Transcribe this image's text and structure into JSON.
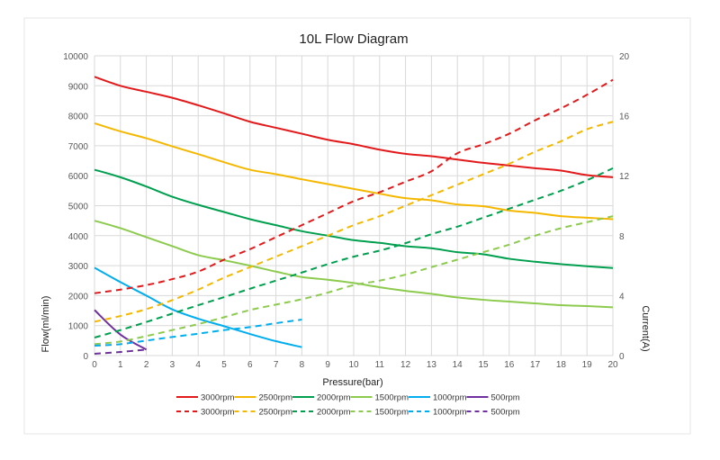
{
  "chart_data": {
    "type": "line",
    "title": "10L Flow Diagram",
    "xlabel": "Pressure(bar)",
    "ylabel": "Flow(ml/min)",
    "y2label": "Current(A)",
    "xlim": [
      0,
      20
    ],
    "ylim": [
      0,
      10000
    ],
    "y2lim": [
      0,
      20
    ],
    "xticks": [
      "0",
      "1",
      "2",
      "3",
      "4",
      "5",
      "6",
      "7",
      "8",
      "9",
      "10",
      "11",
      "12",
      "13",
      "14",
      "15",
      "16",
      "17",
      "18",
      "19",
      "20"
    ],
    "yticks": [
      "0",
      "1000",
      "2000",
      "3000",
      "4000",
      "5000",
      "6000",
      "7000",
      "8000",
      "9000",
      "10000"
    ],
    "y2ticks": [
      "0",
      "4",
      "8",
      "12",
      "16",
      "20"
    ],
    "grid": true,
    "legend_position": "bottom",
    "series": [
      {
        "name": "3000rpm",
        "axis": "flow",
        "style": "solid",
        "color": "#e31a1c",
        "values": [
          9300,
          9000,
          8800,
          8600,
          8350,
          8080,
          7800,
          7600,
          7400,
          7200,
          7050,
          6870,
          6730,
          6650,
          6540,
          6430,
          6340,
          6250,
          6170,
          6020,
          5950
        ]
      },
      {
        "name": "2500rpm",
        "axis": "flow",
        "style": "solid",
        "color": "#f5b800",
        "values": [
          7750,
          7480,
          7250,
          6980,
          6720,
          6450,
          6200,
          6050,
          5880,
          5720,
          5560,
          5400,
          5250,
          5180,
          5040,
          4980,
          4840,
          4760,
          4650,
          4600,
          4550
        ]
      },
      {
        "name": "2000rpm",
        "axis": "flow",
        "style": "solid",
        "color": "#00a04f",
        "values": [
          6200,
          5950,
          5640,
          5300,
          5030,
          4790,
          4550,
          4350,
          4150,
          4000,
          3850,
          3760,
          3650,
          3580,
          3450,
          3380,
          3230,
          3130,
          3050,
          2980,
          2920
        ]
      },
      {
        "name": "1500rpm",
        "axis": "flow",
        "style": "solid",
        "color": "#8dcb4f",
        "values": [
          4500,
          4250,
          3950,
          3650,
          3350,
          3180,
          3000,
          2800,
          2620,
          2530,
          2420,
          2280,
          2160,
          2060,
          1940,
          1860,
          1800,
          1740,
          1680,
          1650,
          1610
        ]
      },
      {
        "name": "1000rpm",
        "axis": "flow",
        "style": "solid",
        "color": "#00aeef",
        "values": [
          2930,
          2450,
          2000,
          1540,
          1230,
          980,
          720,
          480,
          280
        ]
      },
      {
        "name": "500rpm",
        "axis": "flow",
        "style": "solid",
        "color": "#7030a0",
        "values": [
          1520,
          700,
          200
        ]
      },
      {
        "name": "3000rpm",
        "axis": "current",
        "style": "dashed",
        "color": "#e31a1c",
        "values": [
          4.16,
          4.4,
          4.7,
          5.1,
          5.6,
          6.4,
          7.1,
          7.9,
          8.7,
          9.5,
          10.3,
          10.9,
          11.6,
          12.3,
          13.5,
          14.1,
          14.8,
          15.7,
          16.5,
          17.4,
          18.4
        ]
      },
      {
        "name": "2500rpm",
        "axis": "current",
        "style": "dashed",
        "color": "#f5b800",
        "values": [
          2.26,
          2.64,
          3.1,
          3.7,
          4.4,
          5.2,
          5.9,
          6.6,
          7.3,
          8.0,
          8.7,
          9.3,
          10.0,
          10.7,
          11.4,
          12.1,
          12.8,
          13.6,
          14.3,
          15.1,
          15.6
        ]
      },
      {
        "name": "2000rpm",
        "axis": "current",
        "style": "dashed",
        "color": "#00a04f",
        "values": [
          1.2,
          1.7,
          2.24,
          2.8,
          3.36,
          3.9,
          4.46,
          5.0,
          5.54,
          6.1,
          6.6,
          7.0,
          7.5,
          8.1,
          8.6,
          9.2,
          9.8,
          10.4,
          11.0,
          11.7,
          12.5
        ]
      },
      {
        "name": "1500rpm",
        "axis": "current",
        "style": "dashed",
        "color": "#8dcb4f",
        "values": [
          0.76,
          0.94,
          1.3,
          1.7,
          2.1,
          2.56,
          3.04,
          3.4,
          3.76,
          4.2,
          4.7,
          5.0,
          5.4,
          5.9,
          6.4,
          6.9,
          7.4,
          8.0,
          8.5,
          8.9,
          9.3
        ]
      },
      {
        "name": "1000rpm",
        "axis": "current",
        "style": "dashed",
        "color": "#00aeef",
        "values": [
          0.66,
          0.76,
          1.0,
          1.24,
          1.46,
          1.7,
          1.9,
          2.16,
          2.4
        ]
      },
      {
        "name": "500rpm",
        "axis": "current",
        "style": "dashed",
        "color": "#7030a0",
        "values": [
          0.12,
          0.24,
          0.4
        ]
      }
    ]
  }
}
